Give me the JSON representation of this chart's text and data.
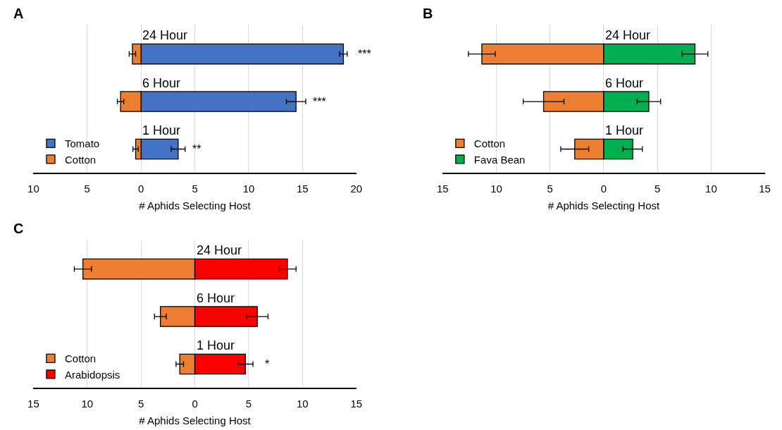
{
  "chart_data": [
    {
      "type": "bar",
      "title": "A",
      "orientation": "horizontal",
      "stacked": true,
      "xlabel": "# Aphids Selecting Host",
      "categories": [
        "24 Hour",
        "6 Hour",
        "1 Hour"
      ],
      "series": [
        {
          "name": "Tomato",
          "color": "#4472c4",
          "values": [
            18.8,
            14.4,
            3.45
          ],
          "errors": [
            0.35,
            0.9,
            0.65
          ]
        },
        {
          "name": "Cotton",
          "color": "#ed7d31",
          "values": [
            -0.8,
            -1.9,
            -0.5
          ],
          "errors": [
            0.3,
            0.3,
            0.25
          ]
        }
      ],
      "xlim": [
        -10,
        20
      ],
      "xticks": [
        {
          "value": -10,
          "label": "10"
        },
        {
          "value": -5,
          "label": "5"
        },
        0,
        5,
        10,
        15,
        20
      ],
      "grid": "x",
      "legend": "bottom left",
      "tick_labels": "x",
      "annotations": [
        "***",
        "***",
        "**"
      ]
    },
    {
      "type": "bar",
      "title": "B",
      "orientation": "horizontal",
      "stacked": true,
      "xlabel": "# Aphids Selecting Host",
      "categories": [
        "24 Hour",
        "6 Hour",
        "1 Hour"
      ],
      "series": [
        {
          "name": "Cotton",
          "color": "#ed7d31",
          "values": [
            -11.35,
            -5.6,
            -2.7
          ],
          "errors": [
            1.25,
            1.9,
            1.3
          ]
        },
        {
          "name": "Fava Bean",
          "color": "#00b050",
          "values": [
            8.5,
            4.2,
            2.7
          ],
          "errors": [
            1.2,
            1.1,
            0.9
          ]
        }
      ],
      "xlim": [
        -15,
        15
      ],
      "xticks": [
        {
          "value": -15,
          "label": "15"
        },
        {
          "value": -10,
          "label": "10"
        },
        {
          "value": -5,
          "label": "5"
        },
        0,
        5,
        10,
        15
      ],
      "grid": "x",
      "legend": "bottom left",
      "tick_labels": "x"
    },
    {
      "type": "bar",
      "title": "C",
      "orientation": "horizontal",
      "stacked": true,
      "xlabel": "# Aphids Selecting Host",
      "categories": [
        "24 Hour",
        "6 Hour",
        "1 Hour"
      ],
      "series": [
        {
          "name": "Cotton",
          "color": "#ed7d31",
          "values": [
            -10.4,
            -3.2,
            -1.4
          ],
          "errors": [
            0.8,
            0.55,
            0.35
          ]
        },
        {
          "name": "Arabidopsis",
          "color": "#ff0000",
          "values": [
            8.6,
            5.8,
            4.7
          ],
          "errors": [
            0.8,
            1.0,
            0.7
          ]
        }
      ],
      "xlim": [
        -15,
        15
      ],
      "xticks": [
        {
          "value": -15,
          "label": "15"
        },
        {
          "value": -10,
          "label": "10"
        },
        {
          "value": -5,
          "label": "5"
        },
        0,
        5,
        10,
        15
      ],
      "grid": "x",
      "legend": "bottom left",
      "tick_labels": "x",
      "annotations": [
        "*"
      ]
    }
  ]
}
